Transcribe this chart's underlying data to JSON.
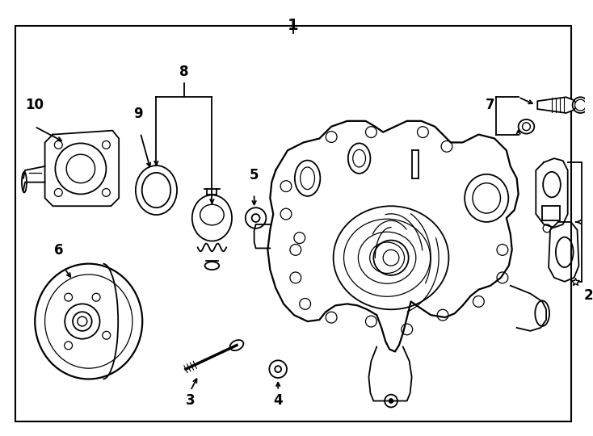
{
  "bg_color": "#ffffff",
  "line_color": "#000000",
  "lw": 1.3,
  "fig_width": 7.34,
  "fig_height": 5.4,
  "dpi": 100,
  "font_size_label": 12,
  "font_size_title": 14
}
